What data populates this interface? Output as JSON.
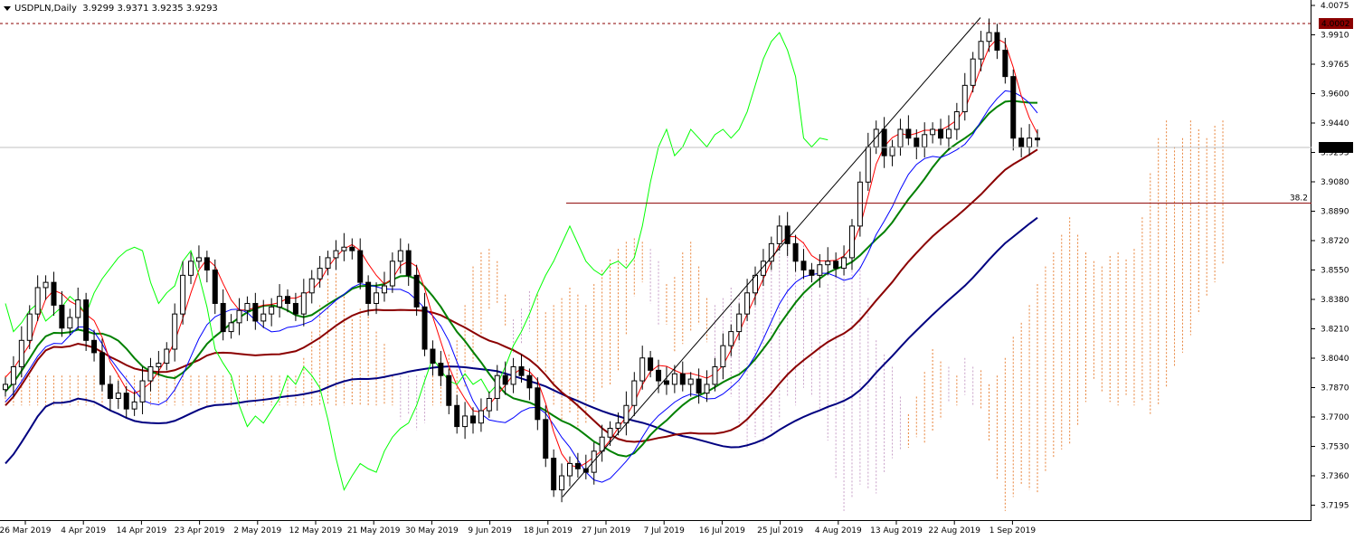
{
  "header": {
    "symbol": "USDPLN,Daily",
    "ohlc": "3.9299 3.9371 3.9235 3.9293"
  },
  "colors": {
    "background": "#ffffff",
    "bull_candle": "#ffffff",
    "bear_candle": "#000000",
    "tenkan_sen": "#ff0000",
    "kijun_sen": "#0000ff",
    "chikou_span": "#00ff00",
    "cloud_bull": "#e8833a",
    "cloud_bear": "#c8a0c8",
    "ma_short": "#008000",
    "ma_mid": "#8b0000",
    "ma_long": "#000080",
    "fib_line": "#8b0000",
    "price_line": "#c0c0c0",
    "high_line": "#8b0000"
  },
  "chart_data": {
    "type": "candlestick",
    "ylim": [
      3.7195,
      4.0075
    ],
    "y_ticks": [
      "4.0075",
      "3.9910",
      "3.9765",
      "3.9600",
      "3.9440",
      "3.9293",
      "3.9080",
      "3.8890",
      "3.8720",
      "3.8550",
      "3.8380",
      "3.8210",
      "3.8040",
      "3.7870",
      "3.7700",
      "3.7530",
      "3.7360",
      "3.7195"
    ],
    "x_labels": [
      "26 Mar 2019",
      "4 Apr 2019",
      "14 Apr 2019",
      "23 Apr 2019",
      "2 May 2019",
      "12 May 2019",
      "21 May 2019",
      "30 May 2019",
      "9 Jun 2019",
      "18 Jun 2019",
      "27 Jun 2019",
      "7 Jul 2019",
      "16 Jul 2019",
      "25 Jul 2019",
      "4 Aug 2019",
      "13 Aug 2019",
      "22 Aug 2019",
      "1 Sep 2019"
    ],
    "current_price": "3.9293",
    "high_marker": "4.0002",
    "fib_label": "38.2",
    "fib_level": 3.893,
    "trendline": {
      "from": [
        3.726,
        "20 Jun 2019"
      ],
      "to": [
        3.9985,
        "28 Aug 2019"
      ]
    },
    "candles_anchor": [
      3.79,
      3.8,
      3.815,
      3.83,
      3.845,
      3.848,
      3.835,
      3.822,
      3.828,
      3.838,
      3.815,
      3.808,
      3.79,
      3.782,
      3.785,
      3.776,
      3.78,
      3.792,
      3.8,
      3.802,
      3.81,
      3.83,
      3.852,
      3.86,
      3.862,
      3.855,
      3.836,
      3.82,
      3.825,
      3.832,
      3.836,
      3.826,
      3.83,
      3.834,
      3.84,
      3.836,
      3.83,
      3.842,
      3.85,
      3.856,
      3.862,
      3.866,
      3.868,
      3.866,
      3.848,
      3.836,
      3.842,
      3.846,
      3.86,
      3.866,
      3.852,
      3.834,
      3.81,
      3.802,
      3.795,
      3.778,
      3.766,
      3.772,
      3.768,
      3.775,
      3.782,
      3.795,
      3.79,
      3.8,
      3.795,
      3.788,
      3.77,
      3.748,
      3.73,
      3.738,
      3.745,
      3.742,
      3.74,
      3.752,
      3.76,
      3.765,
      3.768,
      3.778,
      3.792,
      3.805,
      3.798,
      3.792,
      3.79,
      3.796,
      3.79,
      3.793,
      3.785,
      3.79,
      3.8,
      3.812,
      3.82,
      3.83,
      3.842,
      3.852,
      3.86,
      3.87,
      3.88,
      3.87,
      3.86,
      3.855,
      3.852,
      3.858,
      3.86,
      3.856,
      3.862,
      3.88,
      3.905,
      3.925,
      3.935,
      3.92,
      3.925,
      3.935,
      3.93,
      3.925,
      3.932,
      3.935,
      3.93,
      3.935,
      3.945,
      3.96,
      3.975,
      3.985,
      3.99,
      3.98,
      3.965,
      3.93,
      3.925,
      3.93,
      3.929
    ]
  }
}
